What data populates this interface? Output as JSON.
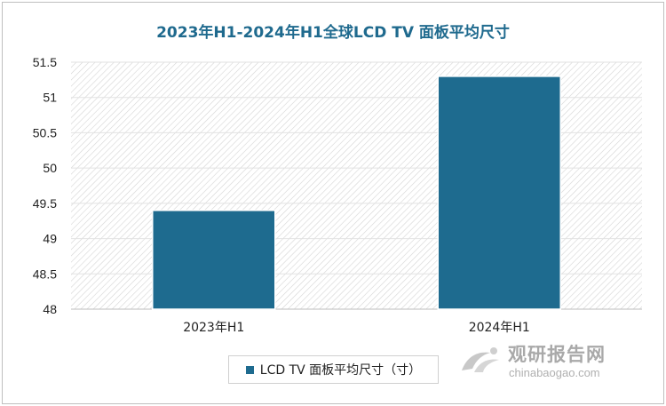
{
  "chart_data": {
    "type": "bar",
    "title": "2023年H1-2024年H1全球LCD TV 面板平均尺寸",
    "categories": [
      "2023年H1",
      "2024年H1"
    ],
    "series": [
      {
        "name": "LCD TV 面板平均尺寸（寸）",
        "values": [
          49.4,
          51.3
        ]
      }
    ],
    "ylim": [
      48,
      51.5
    ],
    "yticks": [
      "48",
      "48.5",
      "49",
      "49.5",
      "50",
      "50.5",
      "51",
      "51.5"
    ],
    "grid": true,
    "legend": "bottom",
    "bar_color": "#1e6b8f"
  },
  "watermark": {
    "name_cn": "观研报告网",
    "site": "chinabaogao.com"
  }
}
